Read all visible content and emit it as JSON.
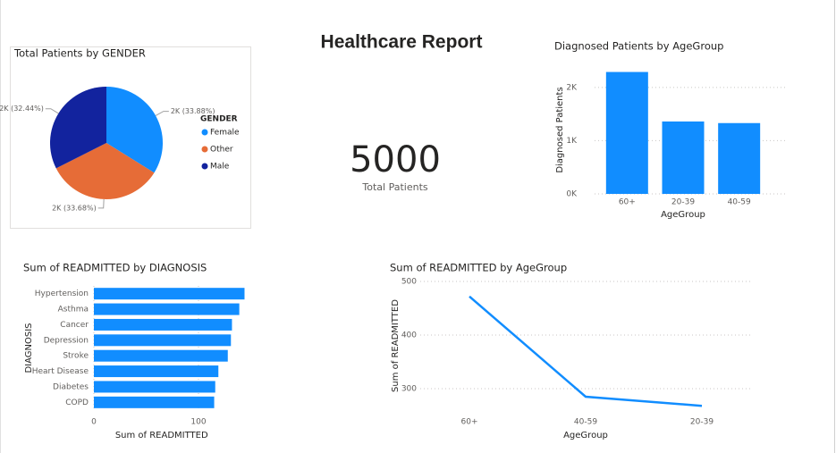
{
  "header": {
    "title": "Healthcare Report"
  },
  "card": {
    "value": 5000,
    "label": "Total Patients"
  },
  "chart_data": [
    {
      "type": "pie",
      "title": "Total Patients by GENDER",
      "legend_title": "GENDER",
      "legend": "right",
      "categories": [
        "Female",
        "Other",
        "Male"
      ],
      "values": [
        33.88,
        33.68,
        32.44
      ],
      "value_labels": [
        "2K (33.88%)",
        "2K (33.68%)",
        "2K (32.44%)"
      ],
      "colors": [
        "#118dff",
        "#e66c37",
        "#12239e"
      ]
    },
    {
      "type": "bar",
      "orientation": "vertical",
      "title": "Diagnosed Patients by AgeGroup",
      "x_label": "AgeGroup",
      "y_label": "Diagnosed Patients",
      "categories": [
        "60+",
        "20-39",
        "40-59"
      ],
      "values": [
        2290,
        1360,
        1330
      ],
      "color": "#118dff",
      "ylim": [
        0,
        2400
      ],
      "yticks": [
        {
          "value": 0,
          "label": "0K"
        },
        {
          "value": 1000,
          "label": "1K"
        },
        {
          "value": 2000,
          "label": "2K"
        }
      ],
      "grid": true
    },
    {
      "type": "bar",
      "orientation": "horizontal",
      "title": "Sum of READMITTED by DIAGNOSIS",
      "x_label": "Sum of READMITTED",
      "y_label": "DIAGNOSIS",
      "categories": [
        "Hypertension",
        "Asthma",
        "Cancer",
        "Depression",
        "Stroke",
        "Heart Disease",
        "Diabetes",
        "COPD"
      ],
      "values": [
        144,
        139,
        132,
        131,
        128,
        119,
        116,
        115
      ],
      "color": "#118dff",
      "xlim": [
        0,
        150
      ],
      "xticks": [
        0,
        100
      ],
      "grid": true
    },
    {
      "type": "line",
      "title": "Sum of READMITTED by AgeGroup",
      "x_label": "AgeGroup",
      "y_label": "Sum of READMITTED",
      "categories": [
        "60+",
        "40-59",
        "20-39"
      ],
      "values": [
        472,
        285,
        268
      ],
      "color": "#118dff",
      "ylim": [
        260,
        500
      ],
      "yticks": [
        300,
        400,
        500
      ],
      "grid": true
    }
  ]
}
